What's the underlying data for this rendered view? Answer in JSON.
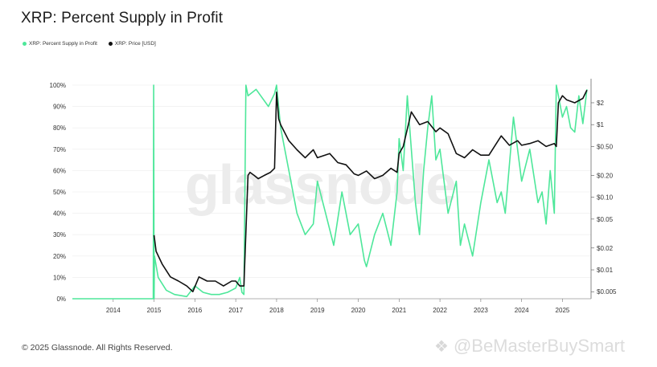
{
  "title": "XRP: Percent Supply in Profit",
  "legend": {
    "supply_label": "XRP: Percent Supply in Profit",
    "price_label": "XRP: Price [USD]"
  },
  "colors": {
    "supply": "#4ee79a",
    "price": "#111111",
    "grid": "#ececec"
  },
  "watermark": "glassnode",
  "footer": "© 2025 Glassnode. All Rights Reserved.",
  "brand": "@BeMasterBuySmart",
  "brand_icon": "binance-diamond-icon",
  "chart_data": {
    "type": "line",
    "title": "XRP: Percent Supply in Profit",
    "xlabel": "",
    "ylabel": "",
    "grid": true,
    "legend_placement": "top-left",
    "x_ticks": [
      "2014",
      "2015",
      "2016",
      "2017",
      "2018",
      "2019",
      "2020",
      "2021",
      "2022",
      "2023",
      "2024",
      "2025"
    ],
    "x_range": [
      2013.0,
      2025.7
    ],
    "left_axis": {
      "ticks": [
        "0%",
        "10%",
        "20%",
        "30%",
        "40%",
        "50%",
        "60%",
        "70%",
        "80%",
        "90%",
        "100%"
      ],
      "ylim": [
        0,
        100
      ]
    },
    "right_axis": {
      "scale": "log",
      "ticks": [
        {
          "label": "$2",
          "value": 2
        },
        {
          "label": "$1",
          "value": 1
        },
        {
          "label": "$0.50",
          "value": 0.5
        },
        {
          "label": "$0.20",
          "value": 0.2
        },
        {
          "label": "$0.10",
          "value": 0.1
        },
        {
          "label": "$0.05",
          "value": 0.05
        },
        {
          "label": "$0.02",
          "value": 0.02
        },
        {
          "label": "$0.01",
          "value": 0.01
        },
        {
          "label": "$0.005",
          "value": 0.005
        }
      ],
      "ylim": [
        0.004,
        3.5
      ]
    },
    "series": [
      {
        "name": "XRP: Percent Supply in Profit",
        "axis": "left",
        "x": [
          2013.0,
          2014.98,
          2014.99,
          2015.0,
          2015.01,
          2015.1,
          2015.3,
          2015.5,
          2015.8,
          2016.0,
          2016.2,
          2016.4,
          2016.6,
          2016.8,
          2017.0,
          2017.1,
          2017.15,
          2017.2,
          2017.25,
          2017.3,
          2017.5,
          2017.8,
          2017.95,
          2018.0,
          2018.1,
          2018.3,
          2018.5,
          2018.7,
          2018.9,
          2019.0,
          2019.2,
          2019.4,
          2019.6,
          2019.8,
          2020.0,
          2020.15,
          2020.2,
          2020.4,
          2020.6,
          2020.8,
          2020.95,
          2021.0,
          2021.1,
          2021.2,
          2021.3,
          2021.4,
          2021.5,
          2021.6,
          2021.7,
          2021.8,
          2021.9,
          2022.0,
          2022.2,
          2022.4,
          2022.5,
          2022.6,
          2022.8,
          2023.0,
          2023.2,
          2023.4,
          2023.5,
          2023.6,
          2023.8,
          2024.0,
          2024.2,
          2024.4,
          2024.5,
          2024.6,
          2024.7,
          2024.8,
          2024.85,
          2024.9,
          2025.0,
          2025.1,
          2025.2,
          2025.3,
          2025.4,
          2025.5,
          2025.6
        ],
        "values": [
          0,
          0,
          100,
          0,
          20,
          10,
          4,
          2,
          1,
          6,
          3,
          2,
          2,
          3,
          5,
          10,
          3,
          2,
          100,
          95,
          98,
          90,
          96,
          100,
          80,
          60,
          40,
          30,
          35,
          55,
          40,
          25,
          50,
          30,
          35,
          18,
          15,
          30,
          40,
          25,
          50,
          75,
          60,
          95,
          70,
          45,
          30,
          60,
          80,
          95,
          65,
          70,
          40,
          55,
          25,
          35,
          20,
          45,
          65,
          45,
          50,
          40,
          85,
          55,
          70,
          45,
          50,
          35,
          60,
          40,
          100,
          95,
          85,
          90,
          80,
          78,
          95,
          82,
          98
        ]
      },
      {
        "name": "XRP: Price [USD]",
        "axis": "right",
        "x": [
          2015.0,
          2015.05,
          2015.2,
          2015.4,
          2015.6,
          2015.8,
          2015.95,
          2016.1,
          2016.3,
          2016.5,
          2016.7,
          2016.9,
          2017.0,
          2017.1,
          2017.2,
          2017.3,
          2017.35,
          2017.45,
          2017.55,
          2017.7,
          2017.85,
          2017.95,
          2018.0,
          2018.05,
          2018.1,
          2018.3,
          2018.5,
          2018.7,
          2018.9,
          2019.0,
          2019.3,
          2019.5,
          2019.7,
          2019.9,
          2020.0,
          2020.2,
          2020.4,
          2020.6,
          2020.8,
          2020.95,
          2021.0,
          2021.1,
          2021.3,
          2021.5,
          2021.7,
          2021.9,
          2022.0,
          2022.2,
          2022.4,
          2022.6,
          2022.8,
          2023.0,
          2023.2,
          2023.5,
          2023.7,
          2023.9,
          2024.0,
          2024.2,
          2024.4,
          2024.6,
          2024.8,
          2024.85,
          2024.9,
          2025.0,
          2025.1,
          2025.3,
          2025.5,
          2025.6
        ],
        "values": [
          0.03,
          0.018,
          0.012,
          0.008,
          0.007,
          0.006,
          0.005,
          0.008,
          0.007,
          0.007,
          0.006,
          0.007,
          0.007,
          0.006,
          0.006,
          0.2,
          0.22,
          0.2,
          0.18,
          0.2,
          0.22,
          0.25,
          2.8,
          1.2,
          1.0,
          0.6,
          0.45,
          0.35,
          0.45,
          0.35,
          0.4,
          0.3,
          0.28,
          0.21,
          0.2,
          0.23,
          0.18,
          0.2,
          0.25,
          0.22,
          0.4,
          0.5,
          1.5,
          1.0,
          1.1,
          0.8,
          0.9,
          0.75,
          0.4,
          0.35,
          0.45,
          0.38,
          0.38,
          0.7,
          0.52,
          0.6,
          0.52,
          0.55,
          0.6,
          0.5,
          0.55,
          0.5,
          2.0,
          2.5,
          2.2,
          2.0,
          2.3,
          3.0
        ]
      }
    ]
  }
}
